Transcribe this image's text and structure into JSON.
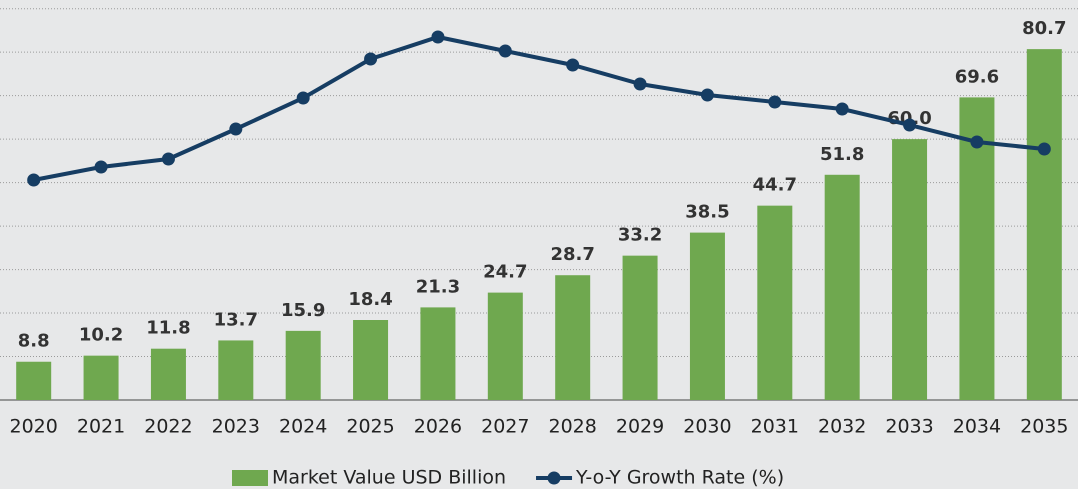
{
  "chart_data": {
    "type": "bar",
    "categories": [
      "2020",
      "2021",
      "2022",
      "2023",
      "2024",
      "2025",
      "2026",
      "2027",
      "2028",
      "2029",
      "2030",
      "2031",
      "2032",
      "2033",
      "2034",
      "2035"
    ],
    "series": [
      {
        "name": "Market Value USD Billion",
        "color": "#6fa84f",
        "type": "bar",
        "values": [
          8.8,
          10.2,
          11.8,
          13.7,
          15.9,
          18.4,
          21.3,
          24.7,
          28.7,
          33.2,
          38.5,
          44.7,
          51.8,
          60.0,
          69.6,
          80.7
        ],
        "value_labels": [
          "8.8",
          "10.2",
          "11.8",
          "13.7",
          "15.9",
          "18.4",
          "21.3",
          "24.7",
          "28.7",
          "33.2",
          "38.5",
          "44.7",
          "51.8",
          "60.0",
          "69.6",
          "80.7"
        ]
      },
      {
        "name": "Y-o-Y Growth Rate (%)",
        "color": "#163d63",
        "type": "line",
        "axis": "y2",
        "values": [
          11.0,
          11.65,
          12.05,
          13.55,
          15.1,
          17.05,
          18.15,
          17.45,
          16.75,
          15.8,
          15.25,
          14.9,
          14.55,
          13.75,
          12.9,
          12.55
        ]
      }
    ],
    "ylim": [
      0,
      92
    ],
    "yticks": [
      10,
      20,
      30,
      40,
      50,
      60,
      70,
      80,
      90
    ],
    "y2lim": [
      0,
      20
    ],
    "grid": true,
    "legend": "bottom"
  }
}
